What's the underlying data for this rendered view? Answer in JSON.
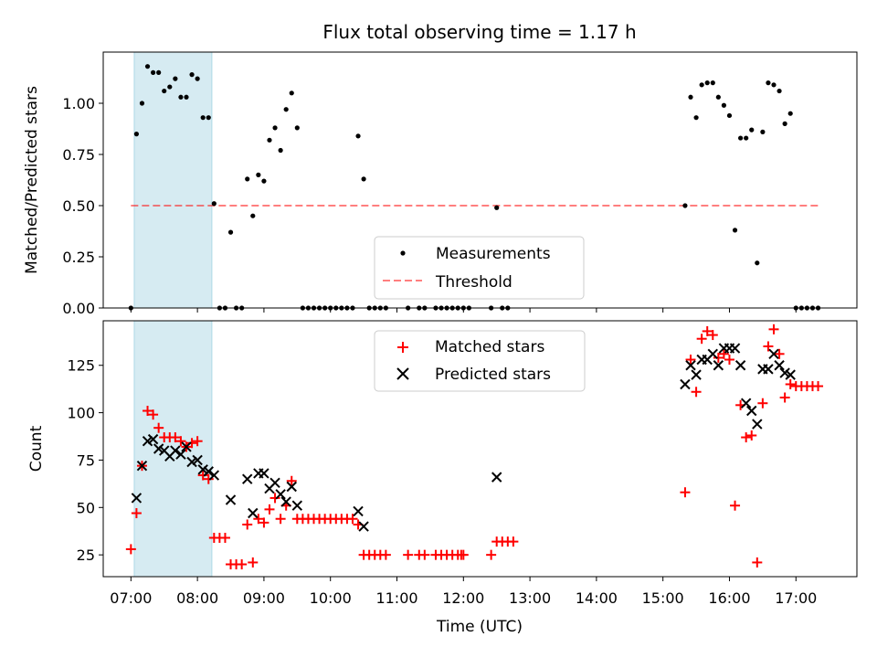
{
  "title": "Flux total observing time = 1.17 h",
  "colors": {
    "measurement": "#000000",
    "threshold": "#ff0000",
    "matched": "#ff0000",
    "predicted": "#000000",
    "shade": "#add8e6"
  },
  "chart_data": [
    {
      "type": "scatter",
      "title": "Flux total observing time = 1.17 h",
      "xlabel": "",
      "ylabel": "Matched/Predicted stars",
      "xlim": [
        "06:35",
        "17:55"
      ],
      "ylim": [
        0,
        1.25
      ],
      "yticks": [
        "0.00",
        "0.25",
        "0.50",
        "0.75",
        "1.00"
      ],
      "shaded_span": [
        "07:03",
        "08:13"
      ],
      "legend": [
        "Measurements",
        "Threshold"
      ],
      "legend_position": "lower center",
      "threshold": {
        "y": 0.5,
        "x_range": [
          "07:00",
          "17:20"
        ]
      },
      "series": [
        {
          "name": "Measurements",
          "marker": "dot",
          "points": [
            [
              "07:00",
              0.0
            ],
            [
              "07:05",
              0.85
            ],
            [
              "07:10",
              1.0
            ],
            [
              "07:15",
              1.18
            ],
            [
              "07:20",
              1.15
            ],
            [
              "07:25",
              1.15
            ],
            [
              "07:30",
              1.06
            ],
            [
              "07:35",
              1.08
            ],
            [
              "07:40",
              1.12
            ],
            [
              "07:45",
              1.03
            ],
            [
              "07:50",
              1.03
            ],
            [
              "07:55",
              1.14
            ],
            [
              "08:00",
              1.12
            ],
            [
              "08:05",
              0.93
            ],
            [
              "08:10",
              0.93
            ],
            [
              "08:15",
              0.51
            ],
            [
              "08:20",
              0.0
            ],
            [
              "08:25",
              0.0
            ],
            [
              "08:30",
              0.37
            ],
            [
              "08:35",
              0.0
            ],
            [
              "08:40",
              0.0
            ],
            [
              "08:45",
              0.63
            ],
            [
              "08:50",
              0.45
            ],
            [
              "08:55",
              0.65
            ],
            [
              "09:00",
              0.62
            ],
            [
              "09:05",
              0.82
            ],
            [
              "09:10",
              0.88
            ],
            [
              "09:15",
              0.77
            ],
            [
              "09:20",
              0.97
            ],
            [
              "09:25",
              1.05
            ],
            [
              "09:30",
              0.88
            ],
            [
              "09:35",
              0.0
            ],
            [
              "09:40",
              0.0
            ],
            [
              "09:45",
              0.0
            ],
            [
              "09:50",
              0.0
            ],
            [
              "09:55",
              0.0
            ],
            [
              "10:00",
              0.0
            ],
            [
              "10:05",
              0.0
            ],
            [
              "10:10",
              0.0
            ],
            [
              "10:15",
              0.0
            ],
            [
              "10:20",
              0.0
            ],
            [
              "10:25",
              0.84
            ],
            [
              "10:30",
              0.63
            ],
            [
              "10:35",
              0.0
            ],
            [
              "10:40",
              0.0
            ],
            [
              "10:45",
              0.0
            ],
            [
              "10:50",
              0.0
            ],
            [
              "11:10",
              0.0
            ],
            [
              "11:20",
              0.0
            ],
            [
              "11:25",
              0.0
            ],
            [
              "11:35",
              0.0
            ],
            [
              "11:40",
              0.0
            ],
            [
              "11:45",
              0.0
            ],
            [
              "11:50",
              0.0
            ],
            [
              "11:55",
              0.0
            ],
            [
              "12:00",
              0.0
            ],
            [
              "12:05",
              0.0
            ],
            [
              "12:25",
              0.0
            ],
            [
              "12:30",
              0.49
            ],
            [
              "12:35",
              0.0
            ],
            [
              "12:40",
              0.0
            ],
            [
              "15:20",
              0.5
            ],
            [
              "15:25",
              1.03
            ],
            [
              "15:30",
              0.93
            ],
            [
              "15:35",
              1.09
            ],
            [
              "15:40",
              1.1
            ],
            [
              "15:45",
              1.1
            ],
            [
              "15:50",
              1.03
            ],
            [
              "15:55",
              0.99
            ],
            [
              "16:00",
              0.94
            ],
            [
              "16:05",
              0.38
            ],
            [
              "16:10",
              0.83
            ],
            [
              "16:15",
              0.83
            ],
            [
              "16:20",
              0.87
            ],
            [
              "16:25",
              0.22
            ],
            [
              "16:30",
              0.86
            ],
            [
              "16:35",
              1.1
            ],
            [
              "16:40",
              1.09
            ],
            [
              "16:45",
              1.06
            ],
            [
              "16:50",
              0.9
            ],
            [
              "16:55",
              0.95
            ],
            [
              "17:00",
              0.0
            ],
            [
              "17:05",
              0.0
            ],
            [
              "17:10",
              0.0
            ],
            [
              "17:15",
              0.0
            ],
            [
              "17:20",
              0.0
            ]
          ]
        }
      ]
    },
    {
      "type": "scatter",
      "title": "",
      "xlabel": "Time (UTC)",
      "ylabel": "Count",
      "xlim": [
        "06:35",
        "17:55"
      ],
      "ylim": [
        13.5,
        148.5
      ],
      "yticks": [
        "25",
        "50",
        "75",
        "100",
        "125"
      ],
      "xticks": [
        "07:00",
        "08:00",
        "09:00",
        "10:00",
        "11:00",
        "12:00",
        "13:00",
        "14:00",
        "15:00",
        "16:00",
        "17:00"
      ],
      "shaded_span": [
        "07:03",
        "08:13"
      ],
      "legend": [
        "Matched stars",
        "Predicted stars"
      ],
      "legend_position": "upper center",
      "series": [
        {
          "name": "Matched stars",
          "marker": "plus",
          "points": [
            [
              "07:00",
              28
            ],
            [
              "07:05",
              47
            ],
            [
              "07:10",
              72
            ],
            [
              "07:15",
              101
            ],
            [
              "07:20",
              99
            ],
            [
              "07:25",
              92
            ],
            [
              "07:30",
              87
            ],
            [
              "07:35",
              87
            ],
            [
              "07:40",
              87
            ],
            [
              "07:45",
              85
            ],
            [
              "07:50",
              82
            ],
            [
              "07:55",
              84
            ],
            [
              "08:00",
              85
            ],
            [
              "08:05",
              67
            ],
            [
              "08:10",
              65
            ],
            [
              "08:15",
              34
            ],
            [
              "08:20",
              34
            ],
            [
              "08:25",
              34
            ],
            [
              "08:30",
              20
            ],
            [
              "08:35",
              20
            ],
            [
              "08:40",
              20
            ],
            [
              "08:45",
              41
            ],
            [
              "08:50",
              21
            ],
            [
              "08:55",
              44
            ],
            [
              "09:00",
              42
            ],
            [
              "09:05",
              49
            ],
            [
              "09:10",
              55
            ],
            [
              "09:15",
              44
            ],
            [
              "09:20",
              51
            ],
            [
              "09:25",
              64
            ],
            [
              "09:30",
              44
            ],
            [
              "09:35",
              44
            ],
            [
              "09:40",
              44
            ],
            [
              "09:45",
              44
            ],
            [
              "09:50",
              44
            ],
            [
              "09:55",
              44
            ],
            [
              "10:00",
              44
            ],
            [
              "10:05",
              44
            ],
            [
              "10:10",
              44
            ],
            [
              "10:15",
              44
            ],
            [
              "10:20",
              44
            ],
            [
              "10:25",
              41
            ],
            [
              "10:30",
              25
            ],
            [
              "10:35",
              25
            ],
            [
              "10:40",
              25
            ],
            [
              "10:45",
              25
            ],
            [
              "10:50",
              25
            ],
            [
              "11:10",
              25
            ],
            [
              "11:20",
              25
            ],
            [
              "11:25",
              25
            ],
            [
              "11:35",
              25
            ],
            [
              "11:40",
              25
            ],
            [
              "11:45",
              25
            ],
            [
              "11:50",
              25
            ],
            [
              "11:55",
              25
            ],
            [
              "11:58",
              25
            ],
            [
              "12:00",
              25
            ],
            [
              "12:25",
              25
            ],
            [
              "12:30",
              32
            ],
            [
              "12:35",
              32
            ],
            [
              "12:40",
              32
            ],
            [
              "12:45",
              32
            ],
            [
              "15:20",
              58
            ],
            [
              "15:25",
              128
            ],
            [
              "15:30",
              111
            ],
            [
              "15:35",
              139
            ],
            [
              "15:40",
              143
            ],
            [
              "15:45",
              141
            ],
            [
              "15:50",
              129
            ],
            [
              "15:55",
              131
            ],
            [
              "16:00",
              128
            ],
            [
              "16:05",
              51
            ],
            [
              "16:10",
              104
            ],
            [
              "16:15",
              87
            ],
            [
              "16:20",
              88
            ],
            [
              "16:25",
              21
            ],
            [
              "16:30",
              105
            ],
            [
              "16:35",
              135
            ],
            [
              "16:40",
              144
            ],
            [
              "16:45",
              131
            ],
            [
              "16:50",
              108
            ],
            [
              "16:55",
              115
            ],
            [
              "17:00",
              114
            ],
            [
              "17:05",
              114
            ],
            [
              "17:10",
              114
            ],
            [
              "17:15",
              114
            ],
            [
              "17:20",
              114
            ]
          ]
        },
        {
          "name": "Predicted stars",
          "marker": "x",
          "points": [
            [
              "07:05",
              55
            ],
            [
              "07:10",
              72
            ],
            [
              "07:15",
              85
            ],
            [
              "07:20",
              86
            ],
            [
              "07:25",
              81
            ],
            [
              "07:30",
              80
            ],
            [
              "07:35",
              77
            ],
            [
              "07:40",
              80
            ],
            [
              "07:45",
              78
            ],
            [
              "07:50",
              82
            ],
            [
              "07:55",
              74
            ],
            [
              "08:00",
              75
            ],
            [
              "08:05",
              70
            ],
            [
              "08:10",
              69
            ],
            [
              "08:15",
              67
            ],
            [
              "08:30",
              54
            ],
            [
              "08:45",
              65
            ],
            [
              "08:50",
              47
            ],
            [
              "08:55",
              68
            ],
            [
              "09:00",
              68
            ],
            [
              "09:05",
              60
            ],
            [
              "09:10",
              63
            ],
            [
              "09:15",
              57
            ],
            [
              "09:20",
              53
            ],
            [
              "09:25",
              61
            ],
            [
              "09:30",
              51
            ],
            [
              "10:25",
              48
            ],
            [
              "10:30",
              40
            ],
            [
              "12:30",
              66
            ],
            [
              "15:20",
              115
            ],
            [
              "15:25",
              125
            ],
            [
              "15:30",
              120
            ],
            [
              "15:35",
              128
            ],
            [
              "15:40",
              128
            ],
            [
              "15:45",
              131
            ],
            [
              "15:50",
              125
            ],
            [
              "15:55",
              134
            ],
            [
              "16:00",
              134
            ],
            [
              "16:05",
              134
            ],
            [
              "16:10",
              125
            ],
            [
              "16:15",
              105
            ],
            [
              "16:20",
              101
            ],
            [
              "16:25",
              94
            ],
            [
              "16:30",
              123
            ],
            [
              "16:35",
              123
            ],
            [
              "16:40",
              131
            ],
            [
              "16:45",
              125
            ],
            [
              "16:50",
              121
            ],
            [
              "16:55",
              120
            ]
          ]
        }
      ]
    }
  ]
}
